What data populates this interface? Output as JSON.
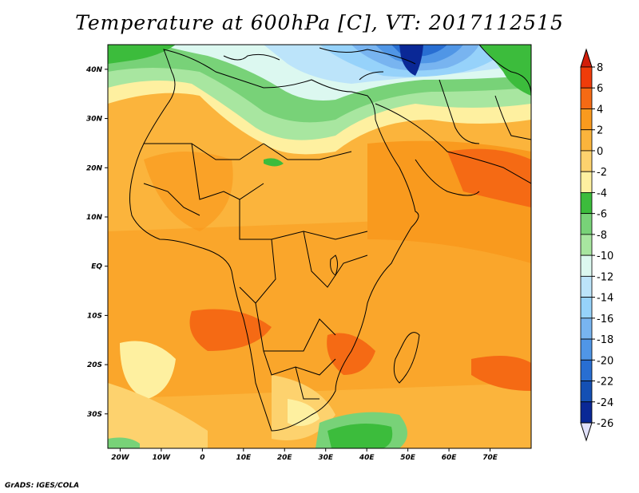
{
  "title": "Temperature at 600hPa [C], VT: 2017112515",
  "credit": "GrADS: IGES/COLA",
  "map": {
    "lon_range": [
      -23,
      80
    ],
    "lat_range": [
      -37,
      45
    ],
    "lat_ticks": [
      {
        "value": 40,
        "label": "40N"
      },
      {
        "value": 30,
        "label": "30N"
      },
      {
        "value": 20,
        "label": "20N"
      },
      {
        "value": 10,
        "label": "10N"
      },
      {
        "value": 0,
        "label": "EQ"
      },
      {
        "value": -10,
        "label": "10S"
      },
      {
        "value": -20,
        "label": "20S"
      },
      {
        "value": -30,
        "label": "30S"
      }
    ],
    "lon_ticks": [
      {
        "value": -20,
        "label": "20W"
      },
      {
        "value": -10,
        "label": "10W"
      },
      {
        "value": 0,
        "label": "0"
      },
      {
        "value": 10,
        "label": "10E"
      },
      {
        "value": 20,
        "label": "20E"
      },
      {
        "value": 30,
        "label": "30E"
      },
      {
        "value": 40,
        "label": "40E"
      },
      {
        "value": 50,
        "label": "50E"
      },
      {
        "value": 60,
        "label": "60E"
      },
      {
        "value": 70,
        "label": "70E"
      }
    ]
  },
  "colorbar": {
    "levels": [
      "8",
      "6",
      "4",
      "2",
      "0",
      "-2",
      "-4",
      "-6",
      "-8",
      "-10",
      "-12",
      "-14",
      "-16",
      "-18",
      "-20",
      "-22",
      "-24",
      "-26"
    ],
    "colors": [
      "#f03c0a",
      "#f56a14",
      "#f99a1e",
      "#fbb43c",
      "#fdd26e",
      "#fef0a0",
      "#3cbc3c",
      "#78d278",
      "#a8e6a0",
      "#dcf8f0",
      "#bce4fa",
      "#96d2fa",
      "#78b4f0",
      "#5096e6",
      "#286ed2",
      "#1450b4",
      "#0a2896"
    ],
    "top_color": "#d21e0a",
    "bottom_color": "#e1e1fa"
  }
}
